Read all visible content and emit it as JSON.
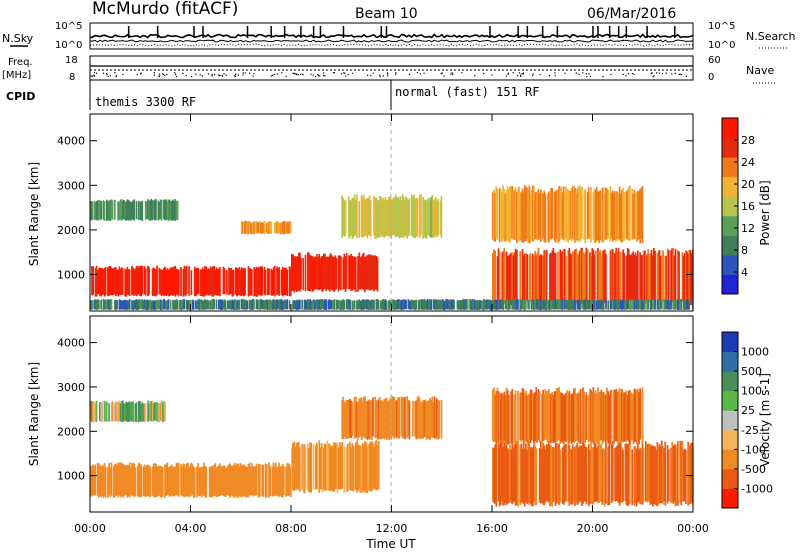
{
  "header": {
    "station": "McMurdo (fitACF)",
    "beam": "Beam 10",
    "date": "06/Mar/2016"
  },
  "top_panels": {
    "left_label_1": "N.Sky",
    "left_label_2": "Freq.",
    "left_label_3": "[MHz]",
    "left_label_4": "CPID",
    "right_label_1": "N.Search",
    "right_label_2": "Nave",
    "left_tick_high": "10^5",
    "left_tick_low": "10^0",
    "right_tick_high": "10^5",
    "right_tick_low": "10^0",
    "freq_tick_high": "18",
    "freq_tick_low": "8",
    "nave_tick_high": "60",
    "nave_tick_low": "0",
    "cpid_left": "themis 3300 RF",
    "cpid_right": "normal (fast) 151 RF"
  },
  "axes": {
    "xlabel": "Time UT",
    "xticks": [
      "00:00",
      "04:00",
      "08:00",
      "12:00",
      "16:00",
      "20:00",
      "00:00"
    ],
    "ylabel": "Slant Range [km]",
    "yticks": [
      "1000",
      "2000",
      "3000",
      "4000"
    ]
  },
  "power_scale": {
    "label": "Power [dB]",
    "ticks": [
      "4",
      "8",
      "12",
      "16",
      "20",
      "24",
      "28"
    ]
  },
  "velocity_scale": {
    "label": "Velocity [m s-1]",
    "ticks": [
      "1000",
      "500",
      "100",
      "25",
      "-25",
      "-100",
      "-500",
      "-1000"
    ]
  },
  "colors": {
    "power": [
      "#1f25d6",
      "#2b55b8",
      "#3f7f5a",
      "#5aa05a",
      "#b5c64a",
      "#f2b233",
      "#f07a1a",
      "#e52a10",
      "#ff1800"
    ],
    "velocity": [
      "#1b3cb5",
      "#2f6fa7",
      "#4a8f58",
      "#58b84a",
      "#bfbfbf",
      "#f5b35a",
      "#f08a24",
      "#ea5a12",
      "#ff1a00"
    ]
  },
  "chart_data": [
    {
      "type": "heatmap",
      "name": "Power",
      "xlabel": "Time UT",
      "ylabel": "Slant Range [km]",
      "xlim": [
        0,
        24
      ],
      "ylim": [
        180,
        4600
      ],
      "colorbar_label": "Power [dB]",
      "colorbar_range": [
        0,
        30
      ],
      "bands": [
        {
          "t0": 0.0,
          "t1": 8.0,
          "r0": 500,
          "r1": 1200,
          "value": 28
        },
        {
          "t0": 8.0,
          "t1": 11.5,
          "r0": 600,
          "r1": 1500,
          "value": 26
        },
        {
          "t0": 0.0,
          "t1": 3.5,
          "r0": 2200,
          "r1": 2700,
          "value": 10
        },
        {
          "t0": 6.0,
          "t1": 8.0,
          "r0": 1900,
          "r1": 2200,
          "value": 20
        },
        {
          "t0": 10.0,
          "t1": 14.0,
          "r0": 1800,
          "r1": 2800,
          "value": 16
        },
        {
          "t0": 16.0,
          "t1": 24.0,
          "r0": 300,
          "r1": 1600,
          "value": 24
        },
        {
          "t0": 16.0,
          "t1": 22.0,
          "r0": 1700,
          "r1": 3000,
          "value": 20
        },
        {
          "t0": 0.0,
          "t1": 24.0,
          "r0": 200,
          "r1": 450,
          "value": 8
        }
      ]
    },
    {
      "type": "heatmap",
      "name": "Velocity",
      "xlabel": "Time UT",
      "ylabel": "Slant Range [km]",
      "xlim": [
        0,
        24
      ],
      "ylim": [
        180,
        4600
      ],
      "colorbar_label": "Velocity [m s-1]",
      "colorbar_range": [
        -1000,
        1000
      ],
      "bands": [
        {
          "t0": 0.0,
          "t1": 8.0,
          "r0": 500,
          "r1": 1300,
          "value": -300
        },
        {
          "t0": 8.0,
          "t1": 11.5,
          "r0": 600,
          "r1": 1800,
          "value": -200
        },
        {
          "t0": 0.0,
          "t1": 3.0,
          "r0": 2200,
          "r1": 2700,
          "value": 20
        },
        {
          "t0": 10.0,
          "t1": 14.0,
          "r0": 1800,
          "r1": 2800,
          "value": -400
        },
        {
          "t0": 16.0,
          "t1": 24.0,
          "r0": 300,
          "r1": 1800,
          "value": -600
        },
        {
          "t0": 16.0,
          "t1": 22.0,
          "r0": 1700,
          "r1": 3000,
          "value": -500
        }
      ]
    }
  ]
}
